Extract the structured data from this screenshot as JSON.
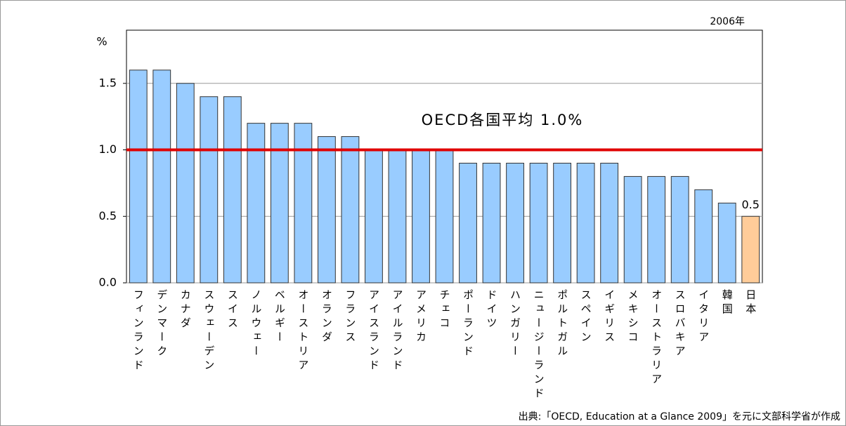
{
  "chart_data": {
    "type": "bar",
    "subtitle": "2006年",
    "y_label": "%",
    "source": "出典:「OECD, Education at a Glance 2009」を元に文部科学省が作成",
    "categories": [
      "フィンランド",
      "デンマーク",
      "カナダ",
      "スウェーデン",
      "スイス",
      "ノルウェー",
      "ベルギー",
      "オーストリア",
      "オランダ",
      "フランス",
      "アイスランド",
      "アイルランド",
      "アメリカ",
      "チェコ",
      "ポーランド",
      "ドイツ",
      "ハンガリー",
      "ニュージーランド",
      "ポルトガル",
      "スペイン",
      "イギリス",
      "メキシコ",
      "オーストラリア",
      "スロバキア",
      "イタリア",
      "韓国",
      "日本"
    ],
    "values": [
      1.6,
      1.6,
      1.5,
      1.4,
      1.4,
      1.2,
      1.2,
      1.2,
      1.1,
      1.1,
      1.0,
      1.0,
      1.0,
      1.0,
      0.9,
      0.9,
      0.9,
      0.9,
      0.9,
      0.9,
      0.9,
      0.8,
      0.8,
      0.8,
      0.7,
      0.6,
      0.5
    ],
    "value_labels": [
      null,
      null,
      null,
      null,
      null,
      null,
      null,
      null,
      null,
      null,
      null,
      null,
      null,
      null,
      null,
      null,
      null,
      null,
      null,
      null,
      null,
      null,
      null,
      null,
      null,
      null,
      "0.5"
    ],
    "colors": [
      "#99ccff",
      "#99ccff",
      "#99ccff",
      "#99ccff",
      "#99ccff",
      "#99ccff",
      "#99ccff",
      "#99ccff",
      "#99ccff",
      "#99ccff",
      "#99ccff",
      "#99ccff",
      "#99ccff",
      "#99ccff",
      "#99ccff",
      "#99ccff",
      "#99ccff",
      "#99ccff",
      "#99ccff",
      "#99ccff",
      "#99ccff",
      "#99ccff",
      "#99ccff",
      "#99ccff",
      "#99ccff",
      "#99ccff",
      "#ffcc99"
    ],
    "reference_line": {
      "value": 1.0,
      "label": "OECD各国平均 1.0%",
      "color": "#e00000"
    },
    "ylim": [
      0,
      1.9
    ],
    "yticks": [
      {
        "value": 0,
        "label": "0.0"
      },
      0.5,
      {
        "value": 1,
        "label": "1.0"
      },
      1.5
    ],
    "grid": true
  }
}
